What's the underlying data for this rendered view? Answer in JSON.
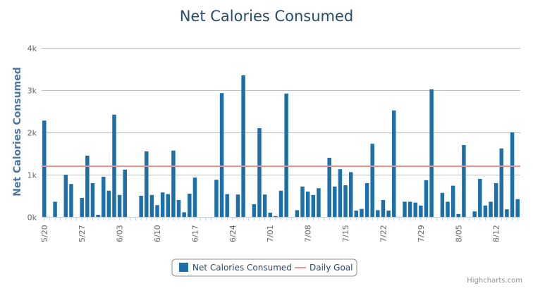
{
  "chart_data": {
    "type": "bar",
    "title": "Net Calories Consumed",
    "ylabel": "Net Calories Consumed",
    "xlabel": "",
    "ylim": [
      0,
      4000
    ],
    "yticks": [
      0,
      1000,
      2000,
      3000,
      4000
    ],
    "ytick_labels": [
      "0k",
      "1k",
      "2k",
      "3k",
      "4k"
    ],
    "start_date": "2012-05-20",
    "xtick_labels": [
      "5/20",
      "5/27",
      "6/03",
      "6/10",
      "6/17",
      "6/24",
      "7/01",
      "7/08",
      "7/15",
      "7/22",
      "7/29",
      "8/05",
      "8/12"
    ],
    "series": [
      {
        "name": "Net Calories Consumed",
        "color": "#1c6fa8",
        "values": [
          2280,
          0,
          360,
          0,
          1000,
          780,
          0,
          450,
          1450,
          800,
          50,
          950,
          620,
          2420,
          520,
          1120,
          0,
          0,
          500,
          1550,
          520,
          280,
          580,
          540,
          1570,
          400,
          110,
          550,
          930,
          0,
          0,
          0,
          880,
          2930,
          540,
          0,
          530,
          3350,
          0,
          300,
          2100,
          530,
          100,
          20,
          620,
          2920,
          0,
          160,
          720,
          600,
          520,
          680,
          0,
          1400,
          720,
          1130,
          750,
          1060,
          150,
          190,
          800,
          1730,
          160,
          400,
          150,
          2520,
          0,
          360,
          360,
          340,
          270,
          870,
          3020,
          0,
          570,
          360,
          740,
          70,
          1700,
          0,
          130,
          900,
          270,
          360,
          800,
          1620,
          180,
          2000,
          420
        ]
      },
      {
        "name": "Daily Goal",
        "color": "#f28f8f",
        "value": 1200
      }
    ],
    "legend": "bottom-center",
    "grid": true
  },
  "credits": "Highcharts.com"
}
